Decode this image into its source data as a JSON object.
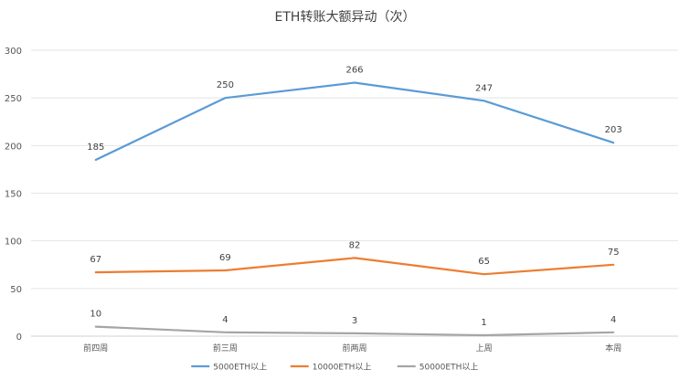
{
  "chart_data": {
    "type": "line",
    "title": "ETH转账大额异动（次）",
    "xlabel": "",
    "ylabel": "",
    "categories": [
      "前四周",
      "前三周",
      "前两周",
      "上周",
      "本周"
    ],
    "ylim": [
      0,
      300
    ],
    "yticks": [
      0,
      50,
      100,
      150,
      200,
      250,
      300
    ],
    "grid": true,
    "legend_position": "bottom",
    "series": [
      {
        "name": "5000ETH以上",
        "values": [
          185,
          250,
          266,
          247,
          203
        ],
        "color": "#5B9BD5"
      },
      {
        "name": "10000ETH以上",
        "values": [
          67,
          69,
          82,
          65,
          75
        ],
        "color": "#ED7D31"
      },
      {
        "name": "50000ETH以上",
        "values": [
          10,
          4,
          3,
          1,
          4
        ],
        "color": "#A5A5A5"
      }
    ]
  }
}
